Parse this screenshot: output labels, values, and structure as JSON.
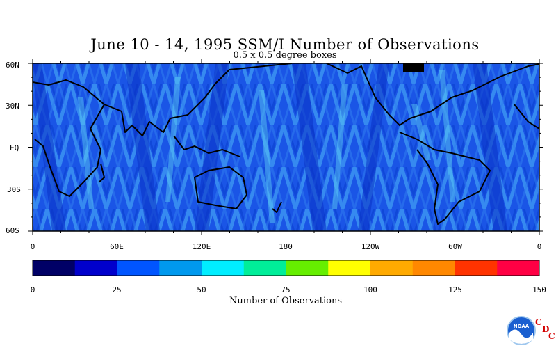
{
  "chart_data": {
    "type": "heatmap",
    "title": "June 10 - 14, 1995 SSM/I Number of Observations",
    "subtitle": "0.5 x 0.5 degree boxes",
    "xlabel": "",
    "ylabel": "",
    "x_ticks": [
      "0",
      "60E",
      "120E",
      "180",
      "120W",
      "60W",
      "0"
    ],
    "y_ticks": [
      "60N",
      "30N",
      "EQ",
      "30S",
      "60S"
    ],
    "xlim": [
      0,
      360
    ],
    "ylim": [
      -60,
      60
    ],
    "colorbar": {
      "label": "Number of Observations",
      "ticks": [
        "0",
        "25",
        "50",
        "75",
        "100",
        "125",
        "150"
      ],
      "range": [
        0,
        150
      ],
      "colors": [
        "#000066",
        "#0000cc",
        "#0055ff",
        "#0099ee",
        "#00eeff",
        "#00ee99",
        "#66ee00",
        "#ffff00",
        "#ffaa00",
        "#ff8800",
        "#ff3300",
        "#ff0044"
      ]
    },
    "dominant_range": [
      25,
      75
    ]
  },
  "logo": {
    "emblem": "noaa-emblem",
    "emblem_text": "NOAA",
    "letters": [
      "C",
      "D",
      "C"
    ]
  }
}
